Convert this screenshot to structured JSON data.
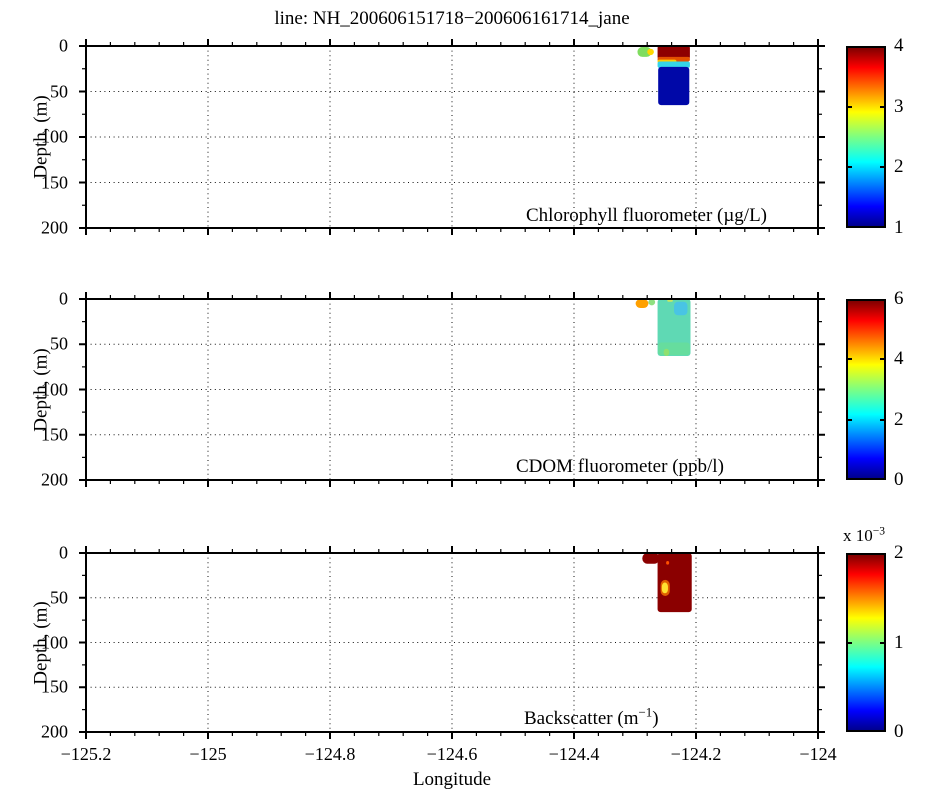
{
  "title": "line: NH_200606151718−200606161714_jane",
  "xlabel": "Longitude",
  "ylabel": "Depth, (m)",
  "chart_data": {
    "type": "heatmap",
    "colormap": "jet",
    "grid": "dotted",
    "x_range": [
      -125.2,
      -124
    ],
    "x_major_ticks": [
      -125.2,
      -125,
      -124.8,
      -124.6,
      -124.4,
      -124.2,
      -124
    ],
    "x_tick_labels": [
      "−125.2",
      "−125",
      "−124.8",
      "−124.6",
      "−124.4",
      "−124.2",
      "−124"
    ],
    "x_minor_step": 0.04,
    "depth_range": [
      0,
      200
    ],
    "y_major_ticks": [
      0,
      50,
      100,
      150,
      200
    ],
    "y_tick_labels": [
      "0",
      "50",
      "100",
      "150",
      "200"
    ],
    "y_minor_step": 25,
    "panels": [
      {
        "name": "chlorophyll",
        "label_prefix": "Chlorophyll fluorometer (µg/L)",
        "label_sup": "",
        "label_suffix": "",
        "colorbar": {
          "min": 1,
          "max": 4,
          "ticks": [
            1,
            2,
            3,
            4
          ],
          "exp_prefix": "",
          "exp_sup": ""
        },
        "patches": [
          {
            "lon": [
              -124.296,
              -124.273
            ],
            "depth": [
              1,
              12
            ],
            "color": "#7FDD5F",
            "rx": 5,
            "value": "≈2.8"
          },
          {
            "lon": [
              -124.28,
              -124.269
            ],
            "depth": [
              3,
              10
            ],
            "color": "#FFD700",
            "rx": 4,
            "value": "≈3.2"
          },
          {
            "lon": [
              -124.263,
              -124.21
            ],
            "depth": [
              0,
              14
            ],
            "color": "#8E0000",
            "rx": 2,
            "value": "≈4"
          },
          {
            "lon": [
              -124.263,
              -124.21
            ],
            "depth": [
              12,
              17
            ],
            "color": "#E35000",
            "rx": 2,
            "value": "≈3.5"
          },
          {
            "lon": [
              -124.263,
              -124.232
            ],
            "depth": [
              15,
              19
            ],
            "color": "#FFC800",
            "rx": 2,
            "value": "≈3.1"
          },
          {
            "lon": [
              -124.263,
              -124.21
            ],
            "depth": [
              17,
              24
            ],
            "color": "#35D4E8",
            "rx": 2,
            "value": "≈2"
          },
          {
            "lon": [
              -124.262,
              -124.211
            ],
            "depth": [
              23,
              65
            ],
            "color": "#0008A8",
            "rx": 3,
            "value": "≈1.2"
          }
        ]
      },
      {
        "name": "cdom",
        "label_prefix": "CDOM fluorometer (ppb/l)",
        "label_sup": "",
        "label_suffix": "",
        "colorbar": {
          "min": 0,
          "max": 6,
          "ticks": [
            0,
            2,
            4,
            6
          ],
          "exp_prefix": "",
          "exp_sup": ""
        },
        "patches": [
          {
            "lon": [
              -124.299,
              -124.278
            ],
            "depth": [
              0,
              10
            ],
            "color": "#FFA000",
            "rx": 5,
            "value": "≈4.5"
          },
          {
            "lon": [
              -124.278,
              -124.267
            ],
            "depth": [
              0,
              7
            ],
            "color": "#8FE080",
            "rx": 4,
            "value": "≈3"
          },
          {
            "lon": [
              -124.263,
              -124.209
            ],
            "depth": [
              0,
              63
            ],
            "color": "#5FD9B4",
            "rx": 3,
            "value": "≈2"
          },
          {
            "lon": [
              -124.236,
              -124.214
            ],
            "depth": [
              3,
              18
            ],
            "color": "#49C4E4",
            "rx": 4,
            "value": "≈1.5"
          },
          {
            "lon": [
              -124.262,
              -124.21
            ],
            "depth": [
              48,
              62
            ],
            "color": "#66DD9E",
            "rx": 3,
            "value": "≈2.2"
          },
          {
            "lon": [
              -124.253,
              -124.244
            ],
            "depth": [
              55,
              63
            ],
            "color": "#8FE070",
            "rx": 3,
            "value": "≈2.8"
          },
          {
            "lon": [
              -124.247,
              -124.238
            ],
            "depth": [
              0,
              3
            ],
            "color": "#C8E860",
            "rx": 1,
            "value": "≈3"
          }
        ]
      },
      {
        "name": "backscatter",
        "label_prefix": "Backscatter (m",
        "label_sup": "−1",
        "label_suffix": ")",
        "colorbar": {
          "min": 0,
          "max": 2,
          "ticks": [
            0,
            1,
            2
          ],
          "exp_prefix": "x 10",
          "exp_sup": "−3"
        },
        "patches": [
          {
            "lon": [
              -124.288,
              -124.26
            ],
            "depth": [
              0,
              12
            ],
            "color": "#8B0000",
            "rx": 5,
            "value": "≈2e-3 (saturated)"
          },
          {
            "lon": [
              -124.263,
              -124.207
            ],
            "depth": [
              0,
              66
            ],
            "color": "#8B0000",
            "rx": 3,
            "value": "≈2e-3 (saturated)"
          },
          {
            "lon": [
              -124.258,
              -124.243
            ],
            "depth": [
              30,
              48
            ],
            "color": "#E06000",
            "rx": 5,
            "value": "≈1.3e-3"
          },
          {
            "lon": [
              -124.256,
              -124.246
            ],
            "depth": [
              33,
              45
            ],
            "color": "#FFE030",
            "rx": 4,
            "value": "≈1e-3"
          },
          {
            "lon": [
              -124.249,
              -124.244
            ],
            "depth": [
              9,
              13
            ],
            "color": "#FF5000",
            "rx": 2,
            "value": "≈1.5e-3"
          }
        ]
      }
    ]
  },
  "colors": {
    "background": "#FFFFFF",
    "axis": "#000000",
    "jet_low": "#00008F",
    "jet_high": "#800000"
  }
}
